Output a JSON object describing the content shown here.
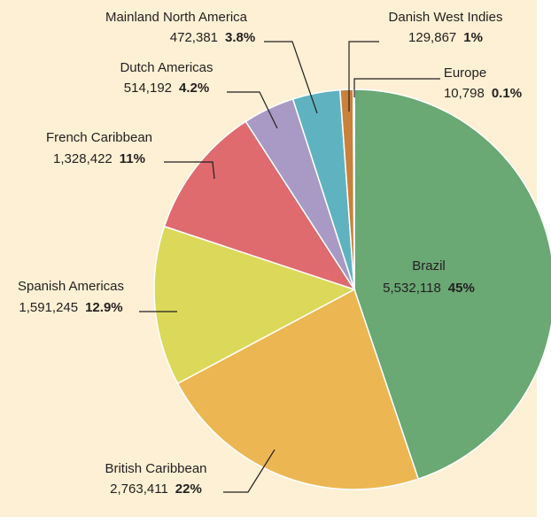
{
  "chart_data": {
    "type": "pie",
    "categories": [
      "Brazil",
      "British Caribbean",
      "Spanish Americas",
      "French Caribbean",
      "Dutch Americas",
      "Mainland North America",
      "Danish West Indies",
      "Europe"
    ],
    "values": [
      5532118,
      2763411,
      1591245,
      1328422,
      514192,
      472381,
      129867,
      10798
    ],
    "value_labels": [
      "5,532,118",
      "2,763,411",
      "1,591,245",
      "1,328,422",
      "514,192",
      "472,381",
      "129,867",
      "10,798"
    ],
    "shares": [
      45,
      22,
      12.9,
      11,
      4.2,
      3.8,
      1,
      0.1
    ],
    "share_labels": [
      "45%",
      "22%",
      "12.9%",
      "11%",
      "4.2%",
      "3.8%",
      "1%",
      "0.1%"
    ],
    "colors": [
      "#6aa874",
      "#ecb752",
      "#dcd95a",
      "#e06b6e",
      "#a89ac4",
      "#5fb3c0",
      "#c9813c",
      "#8a5a2c"
    ]
  }
}
